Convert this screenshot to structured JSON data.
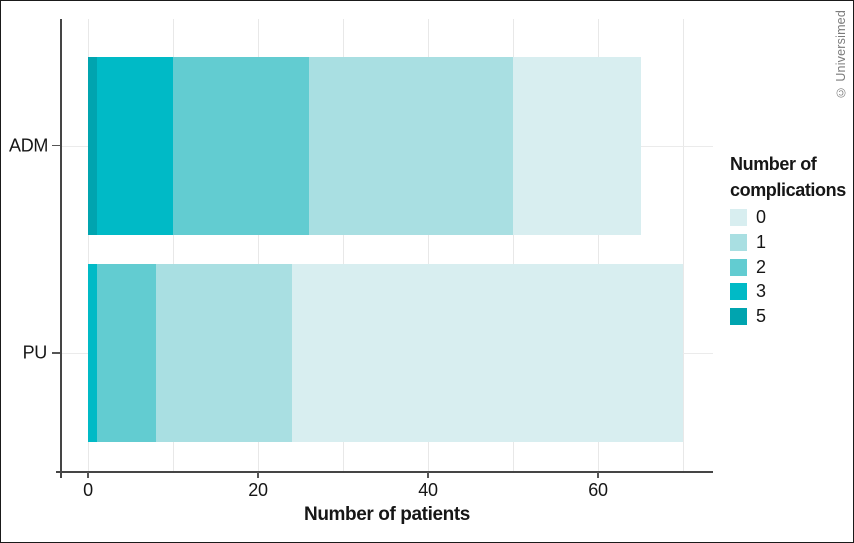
{
  "credit": "© Universimed",
  "chart_data": {
    "type": "bar",
    "orientation": "horizontal",
    "stacked": true,
    "title": "",
    "xlabel": "Number of patients",
    "ylabel": "",
    "categories": [
      "ADM",
      "PU"
    ],
    "series": [
      {
        "name": "5",
        "color": "#00a4af",
        "values": [
          1,
          0
        ]
      },
      {
        "name": "3",
        "color": "#00bac6",
        "values": [
          9,
          1
        ]
      },
      {
        "name": "2",
        "color": "#62ccd1",
        "values": [
          16,
          7
        ]
      },
      {
        "name": "1",
        "color": "#a9dfe2",
        "values": [
          24,
          16
        ]
      },
      {
        "name": "0",
        "color": "#d8eef0",
        "values": [
          15,
          46
        ]
      }
    ],
    "totals": [
      65,
      70
    ],
    "xlim": [
      0,
      70
    ],
    "x_ticks": [
      0,
      20,
      40,
      60
    ],
    "minor_grid_step": 10,
    "grid": "on",
    "legend": {
      "position": "right",
      "title_lines": [
        "Number of",
        "complications"
      ],
      "items": [
        "0",
        "1",
        "2",
        "3",
        "5"
      ]
    },
    "colors": {
      "grid": "#e8e8e8",
      "axis": "#454545",
      "text": "#161616"
    }
  }
}
